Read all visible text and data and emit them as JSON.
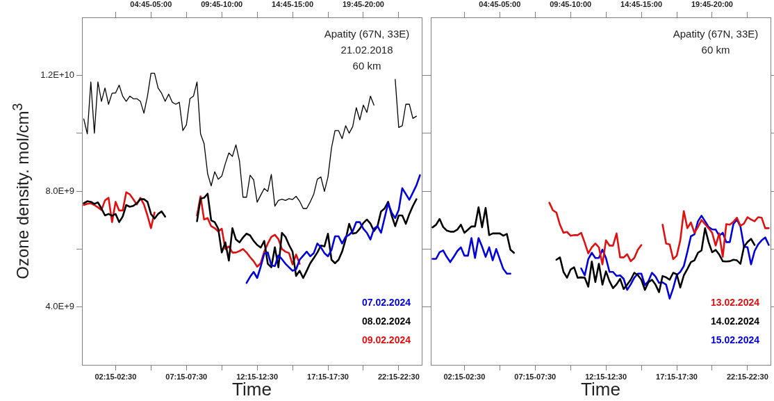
{
  "chart_data": [
    {
      "type": "line",
      "xlabel": "Time",
      "ylabel": "Ozone density. mol/cm$^{3}$",
      "ylim": [
        2000000000.0,
        14000000000.0
      ],
      "categories": [
        null,
        null,
        null,
        null,
        null,
        null,
        null,
        null,
        null,
        "02:15-02:30",
        null,
        null,
        null,
        null,
        null,
        null,
        null,
        null,
        null,
        "04:45-05:00",
        null,
        null,
        null,
        null,
        null,
        null,
        null,
        null,
        null,
        "07:15-07:30",
        null,
        null,
        null,
        null,
        null,
        null,
        null,
        null,
        null,
        "09:45-10:00",
        null,
        null,
        null,
        null,
        null,
        null,
        null,
        null,
        null,
        "12:15-12:30",
        null,
        null,
        null,
        null,
        null,
        null,
        null,
        null,
        null,
        "14:45-15:00",
        null,
        null,
        null,
        null,
        null,
        null,
        null,
        null,
        null,
        "17:15-17:30",
        null,
        null,
        null,
        null,
        null,
        null,
        null,
        null,
        null,
        "19:45-20:00",
        null,
        null,
        null,
        null,
        null,
        null,
        null,
        null,
        null,
        "22:15-22:30",
        null,
        null,
        null,
        null,
        null,
        null
      ],
      "yticks": [
        {
          "value": 4000000000.0,
          "label": "4.0E+9"
        },
        {
          "value": 6000000000.0,
          "label": null
        },
        {
          "value": 8000000000.0,
          "label": "8.0E+9"
        },
        {
          "value": 10000000000.0,
          "label": null
        },
        {
          "value": 12000000000.0,
          "label": "1.2E+10"
        }
      ],
      "annotations": [
        "Apatity (67N, 33E)",
        "21.02.2018",
        "60 km"
      ],
      "legend": "bottom right",
      "marker": "none",
      "line_style": "solid",
      "series": [
        {
          "color": "#000000",
          "values": [
            10490000000.0,
            9980000000.0,
            11770000000.0,
            10000000000.0,
            11770000000.0,
            11100000000.0,
            11560000000.0,
            11000000000.0,
            11380000000.0,
            11390000000.0,
            11660000000.0,
            11280000000.0,
            11100000000.0,
            11280000000.0,
            11190000000.0,
            11190000000.0,
            11100000000.0,
            10690000000.0,
            11280000000.0,
            12070000000.0,
            12070000000.0,
            11560000000.0,
            11380000000.0,
            11100000000.0,
            11350000000.0,
            11070000000.0,
            11000000000.0,
            11070000000.0,
            10090000000.0,
            10290000000.0,
            11190000000.0,
            11280000000.0,
            11770000000.0,
            9980000000.0,
            9640000000.0,
            8600000000.0,
            8180000000.0,
            8670000000.0,
            8410000000.0,
            8520000000.0,
            8950000000.0,
            9320000000.0,
            9200000000.0,
            9600000000.0,
            9040000000.0,
            7790000000.0,
            7790000000.0,
            8550000000.0,
            8390000000.0,
            7620000000.0,
            7860000000.0,
            8090000000.0,
            7990000000.0,
            8580000000.0,
            7480000000.0,
            7680000000.0,
            7720000000.0,
            7680000000.0,
            7740000000.0,
            7710000000.0,
            7820000000.0,
            7650000000.0,
            7400000000.0,
            7400000000.0,
            7630000000.0,
            7900000000.0,
            8410000000.0,
            8490000000.0,
            7990000000.0,
            8490000000.0,
            9490000000.0,
            10090000000.0,
            10090000000.0,
            9810000000.0,
            10260000000.0,
            10000000000.0,
            10230000000.0,
            10880000000.0,
            10460000000.0,
            10970000000.0,
            10720000000.0,
            11280000000.0,
            10970000000.0,
            null,
            null,
            null,
            null,
            null,
            11860000000.0,
            10200000000.0,
            10260000000.0,
            11000000000.0,
            11000000000.0,
            10510000000.0,
            10590000000.0,
            null
          ]
        },
        {
          "name": "07.02.2024",
          "color": "#0000dd",
          "values": [
            null,
            null,
            null,
            null,
            null,
            null,
            null,
            null,
            null,
            null,
            null,
            null,
            null,
            null,
            null,
            null,
            null,
            null,
            null,
            null,
            null,
            null,
            null,
            null,
            null,
            null,
            null,
            null,
            null,
            null,
            null,
            null,
            null,
            null,
            null,
            null,
            null,
            null,
            null,
            null,
            null,
            null,
            null,
            null,
            null,
            null,
            4830000000.0,
            5040000000.0,
            5210000000.0,
            5000000000.0,
            5390000000.0,
            5840000000.0,
            5880000000.0,
            5440000000.0,
            5410000000.0,
            5780000000.0,
            5650000000.0,
            5490000000.0,
            5370000000.0,
            5250000000.0,
            5300000000.0,
            5630000000.0,
            5770000000.0,
            5910000000.0,
            5750000000.0,
            5860000000.0,
            6190000000.0,
            6060000000.0,
            5860000000.0,
            5750000000.0,
            5970000000.0,
            6440000000.0,
            6440000000.0,
            6190000000.0,
            6420000000.0,
            6490000000.0,
            6620000000.0,
            6930000000.0,
            6930000000.0,
            6700000000.0,
            6560000000.0,
            6330000000.0,
            6700000000.0,
            6790000000.0,
            6560000000.0,
            7070000000.0,
            7580000000.0,
            7260000000.0,
            7070000000.0,
            7350000000.0,
            8100000000.0,
            7900000000.0,
            7700000000.0,
            7950000000.0,
            8200000000.0,
            8550000000.0
          ]
        },
        {
          "name": "08.02.2024",
          "color": "#000000",
          "values": [
            7580000000.0,
            7650000000.0,
            7630000000.0,
            7560000000.0,
            7610000000.0,
            7400000000.0,
            7160000000.0,
            7210000000.0,
            7150000000.0,
            7210000000.0,
            6930000000.0,
            7120000000.0,
            7520000000.0,
            7460000000.0,
            7490000000.0,
            7580000000.0,
            7720000000.0,
            7720000000.0,
            7630000000.0,
            7210000000.0,
            7050000000.0,
            7210000000.0,
            7300000000.0,
            7120000000.0,
            null,
            null,
            null,
            null,
            null,
            null,
            null,
            null,
            6960000000.0,
            7740000000.0,
            7770000000.0,
            7910000000.0,
            6990000000.0,
            6930000000.0,
            6700000000.0,
            5880000000.0,
            6230000000.0,
            5600000000.0,
            6720000000.0,
            6330000000.0,
            6230000000.0,
            6400000000.0,
            6530000000.0,
            6470000000.0,
            6280000000.0,
            6140000000.0,
            6050000000.0,
            6280000000.0,
            5490000000.0,
            5370000000.0,
            6060000000.0,
            5370000000.0,
            6560000000.0,
            6420000000.0,
            6140000000.0,
            5910000000.0,
            5070000000.0,
            5250000000.0,
            5000000000.0,
            5250000000.0,
            5510000000.0,
            5690000000.0,
            5880000000.0,
            6120000000.0,
            6090000000.0,
            6530000000.0,
            5630000000.0,
            5510000000.0,
            5630000000.0,
            5910000000.0,
            6330000000.0,
            6870000000.0,
            6530000000.0,
            6560000000.0,
            6700000000.0,
            6900000000.0,
            7020000000.0,
            6880000000.0,
            6620000000.0,
            6790000000.0,
            7300000000.0,
            7400000000.0,
            7630000000.0,
            7160000000.0,
            6790000000.0,
            7160000000.0,
            7160000000.0,
            6870000000.0,
            7210000000.0,
            7490000000.0,
            7720000000.0,
            null
          ]
        },
        {
          "name": "09.02.2024",
          "color": "#e01010",
          "values": [
            7520000000.0,
            7560000000.0,
            7580000000.0,
            7520000000.0,
            7440000000.0,
            7350000000.0,
            7680000000.0,
            7770000000.0,
            6930000000.0,
            7630000000.0,
            7330000000.0,
            7330000000.0,
            7960000000.0,
            7890000000.0,
            7720000000.0,
            7540000000.0,
            7770000000.0,
            7540000000.0,
            7160000000.0,
            6720000000.0,
            7260000000.0,
            null,
            null,
            null,
            null,
            null,
            null,
            null,
            null,
            null,
            null,
            null,
            7160000000.0,
            7820000000.0,
            7020000000.0,
            7070000000.0,
            6790000000.0,
            6720000000.0,
            6610000000.0,
            6700000000.0,
            6000000000.0,
            6090000000.0,
            5880000000.0,
            5880000000.0,
            5930000000.0,
            6000000000.0,
            5880000000.0,
            5720000000.0,
            5580000000.0,
            5390000000.0,
            5510000000.0,
            5910000000.0,
            6190000000.0,
            6420000000.0,
            6490000000.0,
            6340000000.0,
            6000000000.0,
            5910000000.0,
            5860000000.0,
            5470000000.0,
            5810000000.0,
            5490000000.0,
            null,
            null,
            null,
            null,
            null,
            null,
            null,
            null,
            null,
            null,
            null,
            null,
            null,
            null,
            null,
            null,
            null,
            null,
            null,
            null,
            null,
            null,
            null,
            null,
            null,
            null,
            null,
            null,
            null,
            null,
            null,
            null,
            null,
            null
          ]
        }
      ]
    },
    {
      "type": "line",
      "xlabel": "Time",
      "ylim": [
        2000000000.0,
        14000000000.0
      ],
      "tick_labels": "x",
      "categories": [
        null,
        null,
        null,
        null,
        null,
        null,
        null,
        null,
        null,
        "02:15-02:30",
        null,
        null,
        null,
        null,
        null,
        null,
        null,
        null,
        null,
        "04:45-05:00",
        null,
        null,
        null,
        null,
        null,
        null,
        null,
        null,
        null,
        "07:15-07:30",
        null,
        null,
        null,
        null,
        null,
        null,
        null,
        null,
        null,
        "09:45-10:00",
        null,
        null,
        null,
        null,
        null,
        null,
        null,
        null,
        null,
        "12:15-12:30",
        null,
        null,
        null,
        null,
        null,
        null,
        null,
        null,
        null,
        "14:45-15:00",
        null,
        null,
        null,
        null,
        null,
        null,
        null,
        null,
        null,
        "17:15-17:30",
        null,
        null,
        null,
        null,
        null,
        null,
        null,
        null,
        null,
        "19:45-20:00",
        null,
        null,
        null,
        null,
        null,
        null,
        null,
        null,
        null,
        "22:15-22:30",
        null,
        null,
        null,
        null,
        null,
        null
      ],
      "yticks": [
        {
          "value": 4000000000.0,
          "label": null
        },
        {
          "value": 6000000000.0,
          "label": null
        },
        {
          "value": 8000000000.0,
          "label": null
        },
        {
          "value": 10000000000.0,
          "label": null
        },
        {
          "value": 12000000000.0,
          "label": null
        }
      ],
      "annotations": [
        "Apatity (67N, 33E)",
        "60 km"
      ],
      "legend": "bottom right",
      "marker": "none",
      "line_style": "solid",
      "series": [
        {
          "name": "13.02.2024",
          "color": "#e01010",
          "values": [
            null,
            null,
            null,
            null,
            null,
            null,
            null,
            null,
            null,
            null,
            null,
            null,
            null,
            null,
            null,
            null,
            null,
            null,
            null,
            null,
            null,
            null,
            null,
            null,
            null,
            null,
            null,
            null,
            null,
            null,
            null,
            null,
            null,
            7600000000.0,
            7340000000.0,
            7260000000.0,
            6840000000.0,
            6560000000.0,
            6590000000.0,
            6460000000.0,
            6480000000.0,
            6480000000.0,
            6560000000.0,
            6220000000.0,
            5850000000.0,
            6060000000.0,
            6190000000.0,
            6060000000.0,
            5470000000.0,
            6300000000.0,
            6120000000.0,
            6120000000.0,
            6540000000.0,
            5710000000.0,
            5710000000.0,
            5820000000.0,
            5580000000.0,
            5690000000.0,
            5970000000.0,
            6140000000.0,
            null,
            null,
            null,
            null,
            null,
            6840000000.0,
            6190000000.0,
            6160000000.0,
            5650000000.0,
            5770000000.0,
            6300000000.0,
            7310000000.0,
            6720000000.0,
            6920000000.0,
            6560000000.0,
            6760000000.0,
            7000000000.0,
            6860000000.0,
            6720000000.0,
            6560000000.0,
            6120000000.0,
            6540000000.0,
            5730000000.0,
            6860000000.0,
            6840000000.0,
            6940000000.0,
            7080000000.0,
            6800000000.0,
            6880000000.0,
            7100000000.0,
            7020000000.0,
            6960000000.0,
            7100000000.0,
            7080000000.0,
            6720000000.0,
            6720000000.0
          ]
        },
        {
          "name": "14.02.2024",
          "color": "#000000",
          "values": [
            6750000000.0,
            6840000000.0,
            7040000000.0,
            6760000000.0,
            6640000000.0,
            6600000000.0,
            6600000000.0,
            6670000000.0,
            6840000000.0,
            6560000000.0,
            6670000000.0,
            6780000000.0,
            6780000000.0,
            7440000000.0,
            6750000000.0,
            7420000000.0,
            6480000000.0,
            6540000000.0,
            6540000000.0,
            6540000000.0,
            6460000000.0,
            6520000000.0,
            5980000000.0,
            5870000000.0,
            null,
            null,
            null,
            null,
            null,
            null,
            null,
            null,
            null,
            null,
            null,
            5630000000.0,
            5710000000.0,
            5210000000.0,
            5010000000.0,
            5290000000.0,
            5370000000.0,
            5010000000.0,
            5020000000.0,
            5010000000.0,
            4700000000.0,
            5570000000.0,
            4860000000.0,
            5490000000.0,
            4770000000.0,
            5230000000.0,
            4890000000.0,
            4650000000.0,
            4780000000.0,
            4970000000.0,
            4620000000.0,
            4770000000.0,
            4940000000.0,
            5180000000.0,
            5100000000.0,
            4940000000.0,
            4590000000.0,
            4850000000.0,
            4940000000.0,
            4770000000.0,
            4510000000.0,
            5070000000.0,
            5020000000.0,
            4940000000.0,
            5180000000.0,
            5130000000.0,
            4670000000.0,
            5090000000.0,
            5310000000.0,
            5550000000.0,
            5610000000.0,
            5870000000.0,
            5950000000.0,
            6720000000.0,
            6240000000.0,
            5890000000.0,
            5970000000.0,
            5810000000.0,
            5580000000.0,
            5570000000.0,
            5580000000.0,
            5630000000.0,
            5610000000.0,
            5490000000.0,
            6080000000.0,
            6240000000.0,
            6350000000.0,
            6140000000.0,
            null,
            null,
            null,
            null
          ]
        },
        {
          "name": "15.02.2024",
          "color": "#0000dd",
          "values": [
            5660000000.0,
            5660000000.0,
            5890000000.0,
            5950000000.0,
            5730000000.0,
            5550000000.0,
            5730000000.0,
            5930000000.0,
            6060000000.0,
            5770000000.0,
            5770000000.0,
            6380000000.0,
            5690000000.0,
            6380000000.0,
            6080000000.0,
            5730000000.0,
            6060000000.0,
            5610000000.0,
            6000000000.0,
            5650000000.0,
            5310000000.0,
            5150000000.0,
            5150000000.0,
            null,
            null,
            null,
            null,
            null,
            null,
            null,
            null,
            null,
            null,
            null,
            null,
            null,
            null,
            null,
            null,
            null,
            null,
            null,
            5330000000.0,
            5090000000.0,
            5650000000.0,
            5870000000.0,
            5690000000.0,
            5690000000.0,
            5980000000.0,
            5690000000.0,
            5210000000.0,
            5210000000.0,
            5070000000.0,
            5090000000.0,
            4970000000.0,
            4590000000.0,
            4780000000.0,
            5010000000.0,
            5150000000.0,
            5150000000.0,
            4750000000.0,
            4890000000.0,
            5180000000.0,
            5050000000.0,
            4830000000.0,
            4850000000.0,
            4770000000.0,
            4290000000.0,
            4650000000.0,
            5100000000.0,
            5210000000.0,
            5410000000.0,
            5900000000.0,
            6440000000.0,
            6510000000.0,
            6960000000.0,
            7150000000.0,
            6960000000.0,
            6760000000.0,
            6680000000.0,
            6670000000.0,
            6460000000.0,
            6560000000.0,
            6240000000.0,
            6240000000.0,
            6860000000.0,
            7020000000.0,
            6780000000.0,
            6080000000.0,
            6060000000.0,
            5470000000.0,
            5930000000.0,
            6160000000.0,
            6300000000.0,
            6400000000.0,
            6140000000.0
          ]
        }
      ]
    }
  ]
}
